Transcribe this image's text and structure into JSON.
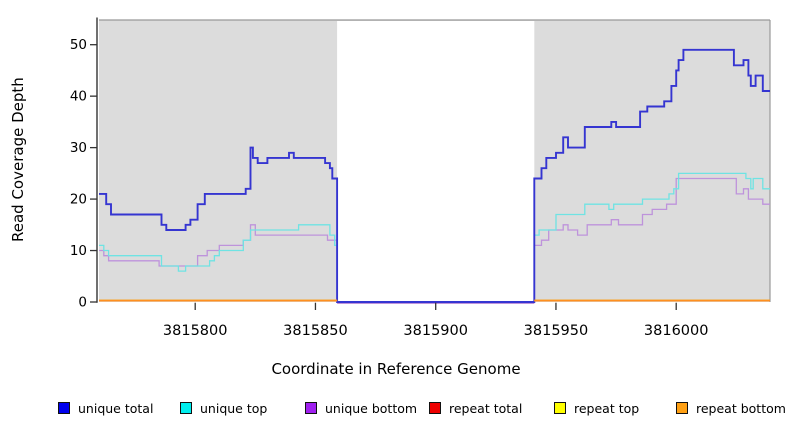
{
  "axes": {
    "xlabel": "Coordinate in Reference Genome",
    "ylabel": "Read Coverage Depth",
    "x_ticks": [
      3815800,
      3815850,
      3815900,
      3815950,
      3816000
    ],
    "y_ticks": [
      0,
      10,
      20,
      30,
      40,
      50
    ]
  },
  "chart_data": {
    "type": "line",
    "step": true,
    "title": "",
    "xlabel": "Coordinate in Reference Genome",
    "ylabel": "Read Coverage Depth",
    "xlim": [
      3815760,
      3816039
    ],
    "ylim": [
      0,
      54.8
    ],
    "grid": false,
    "panel_background": "#DCDCDC",
    "panel_border": "#999999",
    "axis_color": "#333333",
    "gap_region": {
      "start": 3815859,
      "end": 3815941,
      "fill": "#FFFFFF"
    },
    "covered_regions": [
      [
        3815760,
        3815859
      ],
      [
        3815941,
        3816039
      ]
    ],
    "series": [
      {
        "name": "unique bottom",
        "color": "#BE93DB",
        "width": 1.3,
        "segments": [
          [
            [
              3815760,
              10
            ],
            [
              3815762,
              9
            ],
            [
              3815764,
              8
            ],
            [
              3815785,
              7
            ],
            [
              3815801,
              9
            ],
            [
              3815805,
              10
            ],
            [
              3815810,
              11
            ],
            [
              3815820,
              12
            ],
            [
              3815823,
              15
            ],
            [
              3815825,
              13
            ],
            [
              3815855,
              12
            ],
            [
              3815859,
              0
            ],
            [
              3815941,
              11
            ],
            [
              3815944,
              12
            ],
            [
              3815947,
              14
            ],
            [
              3815953,
              15
            ],
            [
              3815955,
              14
            ],
            [
              3815959,
              13
            ],
            [
              3815963,
              15
            ],
            [
              3815973,
              16
            ],
            [
              3815976,
              15
            ],
            [
              3815986,
              17
            ],
            [
              3815990,
              18
            ],
            [
              3815996,
              19
            ],
            [
              3816000,
              24
            ],
            [
              3816025,
              21
            ],
            [
              3816028,
              22
            ],
            [
              3816030,
              20
            ],
            [
              3816036,
              19
            ],
            [
              3816039,
              19
            ]
          ]
        ]
      },
      {
        "name": "unique top",
        "color": "#6FE3E3",
        "width": 1.3,
        "segments": [
          [
            [
              3815760,
              11
            ],
            [
              3815762,
              10
            ],
            [
              3815764,
              9
            ],
            [
              3815786,
              7
            ],
            [
              3815793,
              6
            ],
            [
              3815796,
              7
            ],
            [
              3815806,
              8
            ],
            [
              3815808,
              9
            ],
            [
              3815810,
              10
            ],
            [
              3815820,
              12
            ],
            [
              3815823,
              14
            ],
            [
              3815843,
              15
            ],
            [
              3815856,
              13
            ],
            [
              3815858,
              11
            ],
            [
              3815859,
              0
            ],
            [
              3815941,
              13
            ],
            [
              3815943,
              14
            ],
            [
              3815950,
              17
            ],
            [
              3815962,
              19
            ],
            [
              3815972,
              18
            ],
            [
              3815974,
              19
            ],
            [
              3815986,
              20
            ],
            [
              3815997,
              21
            ],
            [
              3815999,
              22
            ],
            [
              3816001,
              25
            ],
            [
              3816029,
              24
            ],
            [
              3816031,
              22
            ],
            [
              3816032,
              24
            ],
            [
              3816036,
              22
            ],
            [
              3816039,
              22
            ]
          ]
        ]
      },
      {
        "name": "unique total",
        "color": "#3535D1",
        "width": 1.9,
        "segments": [
          [
            [
              3815760,
              21
            ],
            [
              3815763,
              19
            ],
            [
              3815765,
              17
            ],
            [
              3815786,
              15
            ],
            [
              3815788,
              14
            ],
            [
              3815796,
              15
            ],
            [
              3815798,
              16
            ],
            [
              3815801,
              19
            ],
            [
              3815804,
              21
            ],
            [
              3815821,
              22
            ],
            [
              3815823,
              30
            ],
            [
              3815824,
              28
            ],
            [
              3815826,
              27
            ],
            [
              3815830,
              28
            ],
            [
              3815839,
              29
            ],
            [
              3815841,
              28
            ],
            [
              3815854,
              27
            ],
            [
              3815856,
              26
            ],
            [
              3815857,
              24
            ],
            [
              3815859,
              0
            ],
            [
              3815941,
              24
            ],
            [
              3815944,
              26
            ],
            [
              3815946,
              28
            ],
            [
              3815950,
              29
            ],
            [
              3815953,
              32
            ],
            [
              3815955,
              30
            ],
            [
              3815962,
              34
            ],
            [
              3815973,
              35
            ],
            [
              3815975,
              34
            ],
            [
              3815985,
              37
            ],
            [
              3815988,
              38
            ],
            [
              3815995,
              39
            ],
            [
              3815998,
              42
            ],
            [
              3816000,
              45
            ],
            [
              3816001,
              47
            ],
            [
              3816003,
              49
            ],
            [
              3816024,
              46
            ],
            [
              3816028,
              47
            ],
            [
              3816030,
              44
            ],
            [
              3816031,
              42
            ],
            [
              3816033,
              44
            ],
            [
              3816036,
              41
            ],
            [
              3816039,
              41
            ]
          ]
        ]
      },
      {
        "name": "repeat total",
        "color": "#EE0000",
        "width": 1.8,
        "dy": -1.4,
        "segments": [
          [
            [
              3815760,
              0
            ],
            [
              3815859,
              0
            ]
          ],
          [
            [
              3815941,
              0
            ],
            [
              3816039,
              0
            ]
          ]
        ]
      },
      {
        "name": "repeat top",
        "color": "#FFFF00",
        "width": 1.8,
        "dy": -1.4,
        "segments": [
          [
            [
              3815760,
              0
            ],
            [
              3815859,
              0
            ]
          ],
          [
            [
              3815941,
              0
            ],
            [
              3816039,
              0
            ]
          ]
        ]
      },
      {
        "name": "repeat bottom",
        "color": "#FF8F1F",
        "width": 1.8,
        "dy": -1.4,
        "segments": [
          [
            [
              3815760,
              0
            ],
            [
              3815859,
              0
            ]
          ],
          [
            [
              3815941,
              0
            ],
            [
              3816039,
              0
            ]
          ]
        ]
      }
    ]
  },
  "legend": {
    "items": [
      {
        "label": "unique total",
        "color": "#0000EE"
      },
      {
        "label": "unique top",
        "color": "#00EEEE"
      },
      {
        "label": "unique bottom",
        "color": "#A020F0"
      },
      {
        "label": "repeat total",
        "color": "#EE0000"
      },
      {
        "label": "repeat top",
        "color": "#FFFF00"
      },
      {
        "label": "repeat bottom",
        "color": "#FFA013"
      }
    ]
  }
}
